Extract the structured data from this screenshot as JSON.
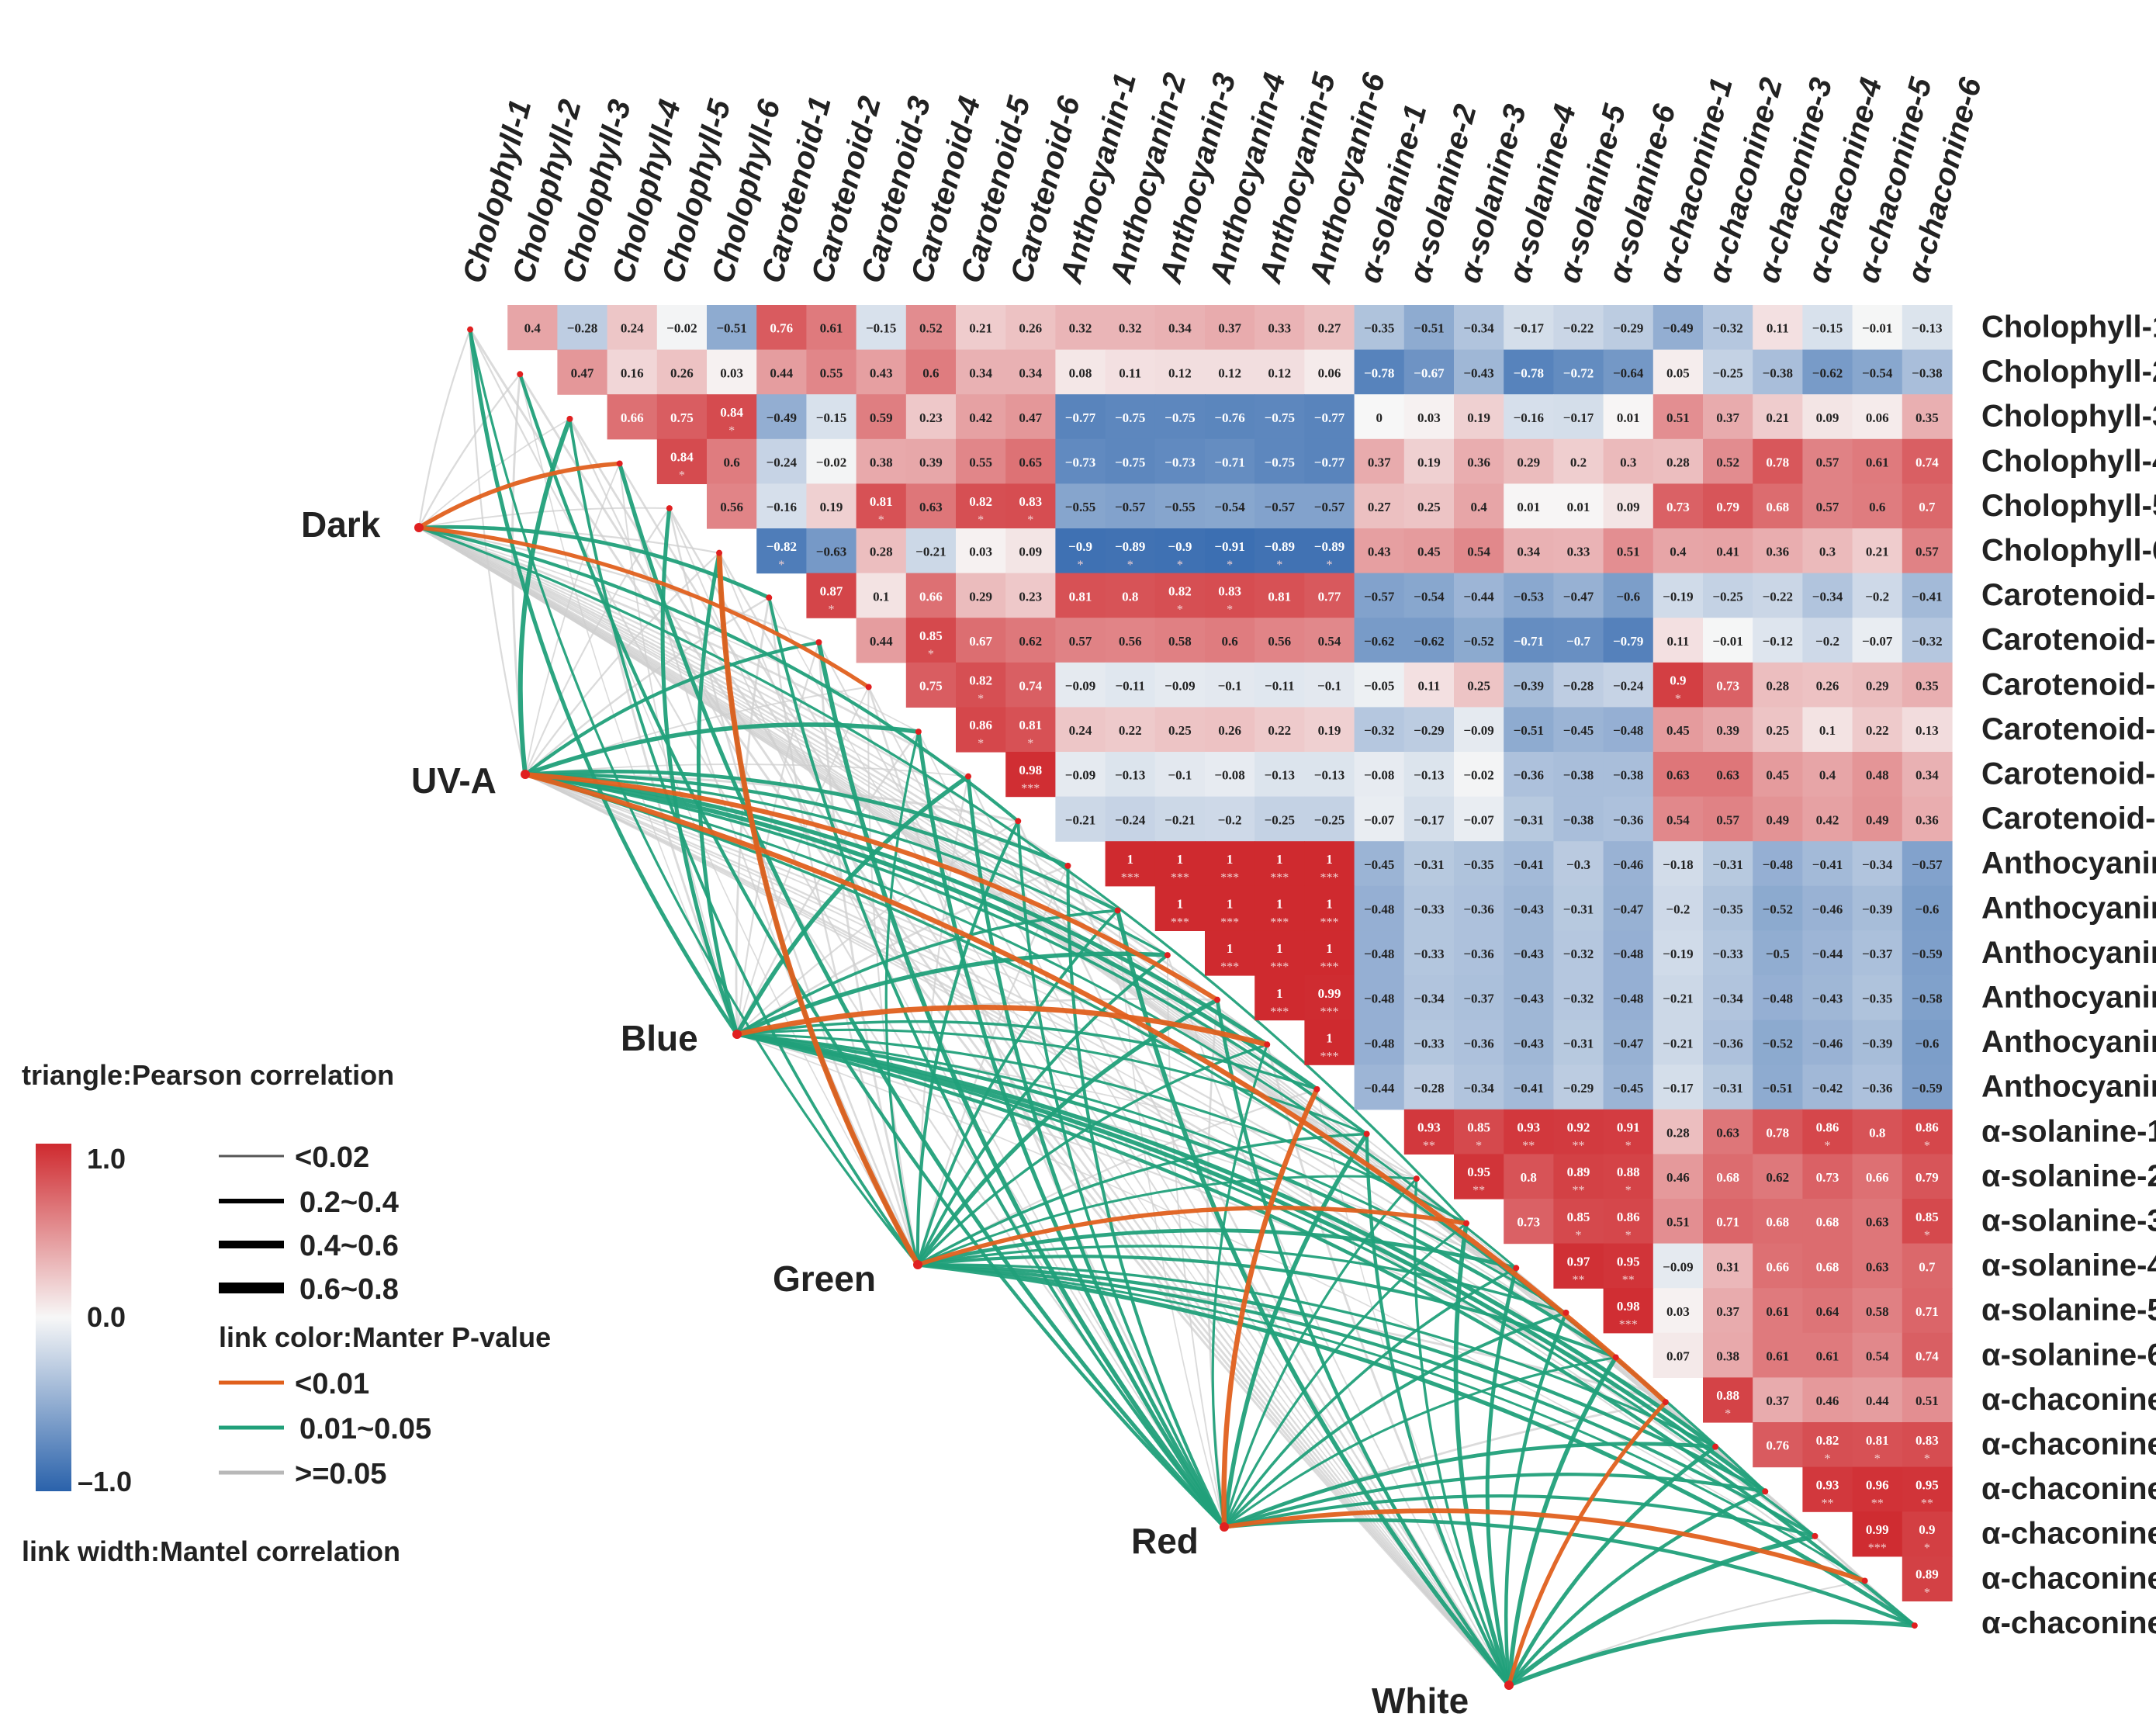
{
  "chart_data": {
    "type": "heatmap",
    "variables": [
      "Cholophyll-1",
      "Cholophyll-2",
      "Cholophyll-3",
      "Cholophyll-4",
      "Cholophyll-5",
      "Cholophyll-6",
      "Carotenoid-1",
      "Carotenoid-2",
      "Carotenoid-3",
      "Carotenoid-4",
      "Carotenoid-5",
      "Carotenoid-6",
      "Anthocyanin-1",
      "Anthocyanin-2",
      "Anthocyanin-3",
      "Anthocyanin-4",
      "Anthocyanin-5",
      "Anthocyanin-6",
      "α-solanine-1",
      "α-solanine-2",
      "α-solanine-3",
      "α-solanine-4",
      "α-solanine-5",
      "α-solanine-6",
      "α-chaconine-1",
      "α-chaconine-2",
      "α-chaconine-3",
      "α-chaconine-4",
      "α-chaconine-5",
      "α-chaconine-6"
    ],
    "matrix": [
      [
        "0.4",
        "-0.28",
        "0.24",
        "-0.02",
        "-0.51",
        "0.76",
        "0.61",
        "-0.15",
        "0.52",
        "0.21",
        "0.26",
        "0.32",
        "0.32",
        "0.34",
        "0.37",
        "0.33",
        "0.27",
        "-0.35",
        "-0.51",
        "-0.34",
        "-0.17",
        "-0.22",
        "-0.29",
        "-0.49",
        "-0.32",
        "0.11",
        "-0.15",
        "-0.01",
        "-0.13"
      ],
      [
        "0.47",
        "0.16",
        "0.26",
        "0.03",
        "0.44",
        "0.55",
        "0.43",
        "0.6",
        "0.34",
        "0.34",
        "0.08",
        "0.11",
        "0.12",
        "0.12",
        "0.12",
        "0.06",
        "-0.78",
        "-0.67",
        "-0.43",
        "-0.78",
        "-0.72",
        "-0.64",
        "0.05",
        "-0.25",
        "-0.38",
        "-0.62",
        "-0.54",
        "-0.38"
      ],
      [
        "0.66",
        "0.75",
        "0.84*",
        "-0.49",
        "-0.15",
        "0.59",
        "0.23",
        "0.42",
        "0.47",
        "-0.77",
        "-0.75",
        "-0.75",
        "-0.76",
        "-0.75",
        "-0.77",
        "0",
        "0.03",
        "0.19",
        "-0.16",
        "-0.17",
        "0.01",
        "0.51",
        "0.37",
        "0.21",
        "0.09",
        "0.06",
        "0.35"
      ],
      [
        "0.84*",
        "0.6",
        "-0.24",
        "-0.02",
        "0.38",
        "0.39",
        "0.55",
        "0.65",
        "-0.73",
        "-0.75",
        "-0.73",
        "-0.71",
        "-0.75",
        "-0.77",
        "0.37",
        "0.19",
        "0.36",
        "0.29",
        "0.2",
        "0.3",
        "0.28",
        "0.52",
        "0.78",
        "0.57",
        "0.61",
        "0.74"
      ],
      [
        "0.56",
        "-0.16",
        "0.19",
        "0.81*",
        "0.63",
        "0.82*",
        "0.83*",
        "-0.55",
        "-0.57",
        "-0.55",
        "-0.54",
        "-0.57",
        "-0.57",
        "0.27",
        "0.25",
        "0.4",
        "0.01",
        "0.01",
        "0.09",
        "0.73",
        "0.79",
        "0.68",
        "0.57",
        "0.6",
        "0.7"
      ],
      [
        "-0.82*",
        "-0.63",
        "0.28",
        "-0.21",
        "0.03",
        "0.09",
        "-0.9*",
        "-0.89*",
        "-0.9*",
        "-0.91*",
        "-0.89*",
        "-0.89*",
        "0.43",
        "0.45",
        "0.54",
        "0.34",
        "0.33",
        "0.51",
        "0.4",
        "0.41",
        "0.36",
        "0.3",
        "0.21",
        "0.57"
      ],
      [
        "0.87*",
        "0.1",
        "0.66",
        "0.29",
        "0.23",
        "0.81",
        "0.8",
        "0.82*",
        "0.83*",
        "0.81",
        "0.77",
        "-0.57",
        "-0.54",
        "-0.44",
        "-0.53",
        "-0.47",
        "-0.6",
        "-0.19",
        "-0.25",
        "-0.22",
        "-0.34",
        "-0.2",
        "-0.41"
      ],
      [
        "0.44",
        "0.85*",
        "0.67",
        "0.62",
        "0.57",
        "0.56",
        "0.58",
        "0.6",
        "0.56",
        "0.54",
        "-0.62",
        "-0.62",
        "-0.52",
        "-0.71",
        "-0.7",
        "-0.79",
        "0.11",
        "-0.01",
        "-0.12",
        "-0.2",
        "-0.07",
        "-0.32"
      ],
      [
        "0.75",
        "0.82*",
        "0.74",
        "-0.09",
        "-0.11",
        "-0.09",
        "-0.1",
        "-0.11",
        "-0.1",
        "-0.05",
        "0.11",
        "0.25",
        "-0.39",
        "-0.28",
        "-0.24",
        "0.9*",
        "0.73",
        "0.28",
        "0.26",
        "0.29",
        "0.35"
      ],
      [
        "0.86*",
        "0.81*",
        "0.24",
        "0.22",
        "0.25",
        "0.26",
        "0.22",
        "0.19",
        "-0.32",
        "-0.29",
        "-0.09",
        "-0.51",
        "-0.45",
        "-0.48",
        "0.45",
        "0.39",
        "0.25",
        "0.1",
        "0.22",
        "0.13"
      ],
      [
        "0.98***",
        "-0.09",
        "-0.13",
        "-0.1",
        "-0.08",
        "-0.13",
        "-0.13",
        "-0.08",
        "-0.13",
        "-0.02",
        "-0.36",
        "-0.38",
        "-0.38",
        "0.63",
        "0.63",
        "0.45",
        "0.4",
        "0.48",
        "0.34"
      ],
      [
        "-0.21",
        "-0.24",
        "-0.21",
        "-0.2",
        "-0.25",
        "-0.25",
        "-0.07",
        "-0.17",
        "-0.07",
        "-0.31",
        "-0.38",
        "-0.36",
        "0.54",
        "0.57",
        "0.49",
        "0.42",
        "0.49",
        "0.36"
      ],
      [
        "1***",
        "1***",
        "1***",
        "1***",
        "1***",
        "-0.45",
        "-0.31",
        "-0.35",
        "-0.41",
        "-0.3",
        "-0.46",
        "-0.18",
        "-0.31",
        "-0.48",
        "-0.41",
        "-0.34",
        "-0.57"
      ],
      [
        "1***",
        "1***",
        "1***",
        "1***",
        "-0.48",
        "-0.33",
        "-0.36",
        "-0.43",
        "-0.31",
        "-0.47",
        "-0.2",
        "-0.35",
        "-0.52",
        "-0.46",
        "-0.39",
        "-0.6"
      ],
      [
        "1***",
        "1***",
        "1***",
        "-0.48",
        "-0.33",
        "-0.36",
        "-0.43",
        "-0.32",
        "-0.48",
        "-0.19",
        "-0.33",
        "-0.5",
        "-0.44",
        "-0.37",
        "-0.59"
      ],
      [
        "1***",
        "0.99***",
        "-0.48",
        "-0.34",
        "-0.37",
        "-0.43",
        "-0.32",
        "-0.48",
        "-0.21",
        "-0.34",
        "-0.48",
        "-0.43",
        "-0.35",
        "-0.58"
      ],
      [
        "1***",
        "-0.48",
        "-0.33",
        "-0.36",
        "-0.43",
        "-0.31",
        "-0.47",
        "-0.21",
        "-0.36",
        "-0.52",
        "-0.46",
        "-0.39",
        "-0.6"
      ],
      [
        "-0.44",
        "-0.28",
        "-0.34",
        "-0.41",
        "-0.29",
        "-0.45",
        "-0.17",
        "-0.31",
        "-0.51",
        "-0.42",
        "-0.36",
        "-0.59"
      ],
      [
        "0.93**",
        "0.85*",
        "0.93**",
        "0.92**",
        "0.91*",
        "0.28",
        "0.63",
        "0.78",
        "0.86*",
        "0.8",
        "0.86*"
      ],
      [
        "0.95**",
        "0.8",
        "0.89**",
        "0.88*",
        "0.46",
        "0.68",
        "0.62",
        "0.73",
        "0.66",
        "0.79"
      ],
      [
        "0.73",
        "0.85*",
        "0.86*",
        "0.51",
        "0.71",
        "0.68",
        "0.68",
        "0.63",
        "0.85*"
      ],
      [
        "0.97**",
        "0.95**",
        "-0.09",
        "0.31",
        "0.66",
        "0.68",
        "0.63",
        "0.7"
      ],
      [
        "0.98***",
        "0.03",
        "0.37",
        "0.61",
        "0.64",
        "0.58",
        "0.71"
      ],
      [
        "0.07",
        "0.38",
        "0.61",
        "0.61",
        "0.54",
        "0.74"
      ],
      [
        "0.88*",
        "0.37",
        "0.46",
        "0.44",
        "0.51"
      ],
      [
        "0.76",
        "0.82*",
        "0.81*",
        "0.83*"
      ],
      [
        "0.93**",
        "0.96**",
        "0.95**"
      ],
      [
        "0.99***",
        "0.9*"
      ],
      [
        "0.89*"
      ],
      []
    ],
    "colorscale": {
      "min": -1.0,
      "max": 1.0,
      "low": "#2a62ab",
      "mid": "#f7f7f7",
      "high": "#cf2a2f"
    },
    "link_colors": {
      "lt001": "#e0601d",
      "p001_005": "#21a07a",
      "ge005": "#cfcfcf"
    },
    "nodes": [
      "Dark",
      "UV-A",
      "Blue",
      "Green",
      "Red",
      "White"
    ],
    "legend": {
      "title": "triangle:Pearson correlation",
      "colorbar_ticks": [
        "1.0",
        "0.0",
        "–1.0"
      ],
      "width_items": [
        "<0.02",
        "0.2~0.4",
        "0.4~0.6",
        "0.6~0.8"
      ],
      "color_title": "link color:Manter P-value",
      "color_items": [
        "<0.01",
        "0.01~0.05",
        ">=0.05"
      ],
      "width_title": "link width:Mantel correlation"
    }
  }
}
